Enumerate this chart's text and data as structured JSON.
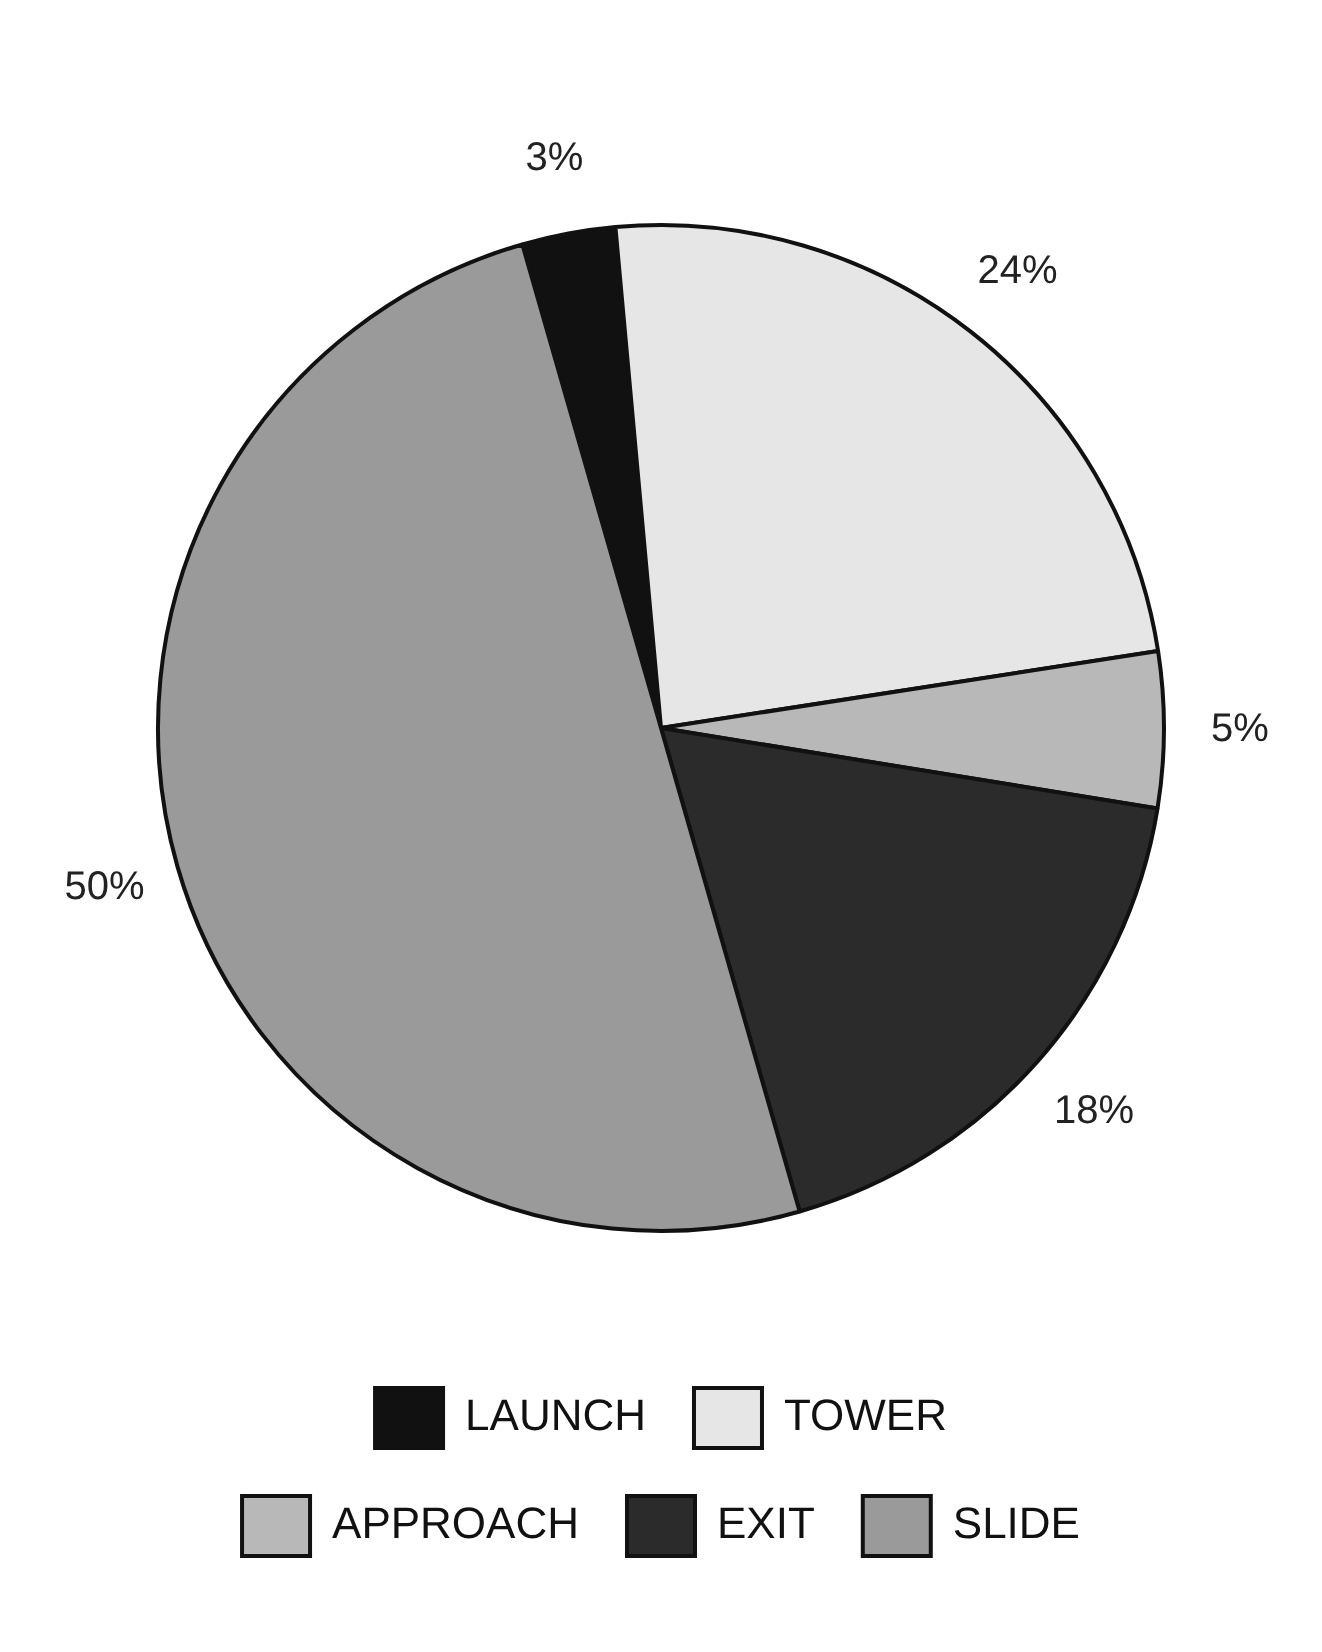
{
  "chart_data": {
    "type": "pie",
    "categories": [
      "LAUNCH",
      "TOWER",
      "APPROACH",
      "EXIT",
      "SLIDE"
    ],
    "values": [
      3,
      24,
      5,
      18,
      50
    ],
    "colors": [
      "#111111",
      "#e6e6e6",
      "#b8b8b8",
      "#2b2b2b",
      "#9a9a9a"
    ],
    "value_labels": [
      "3%",
      "24%",
      "5%",
      "18%",
      "50%"
    ],
    "legend": "bottom"
  }
}
